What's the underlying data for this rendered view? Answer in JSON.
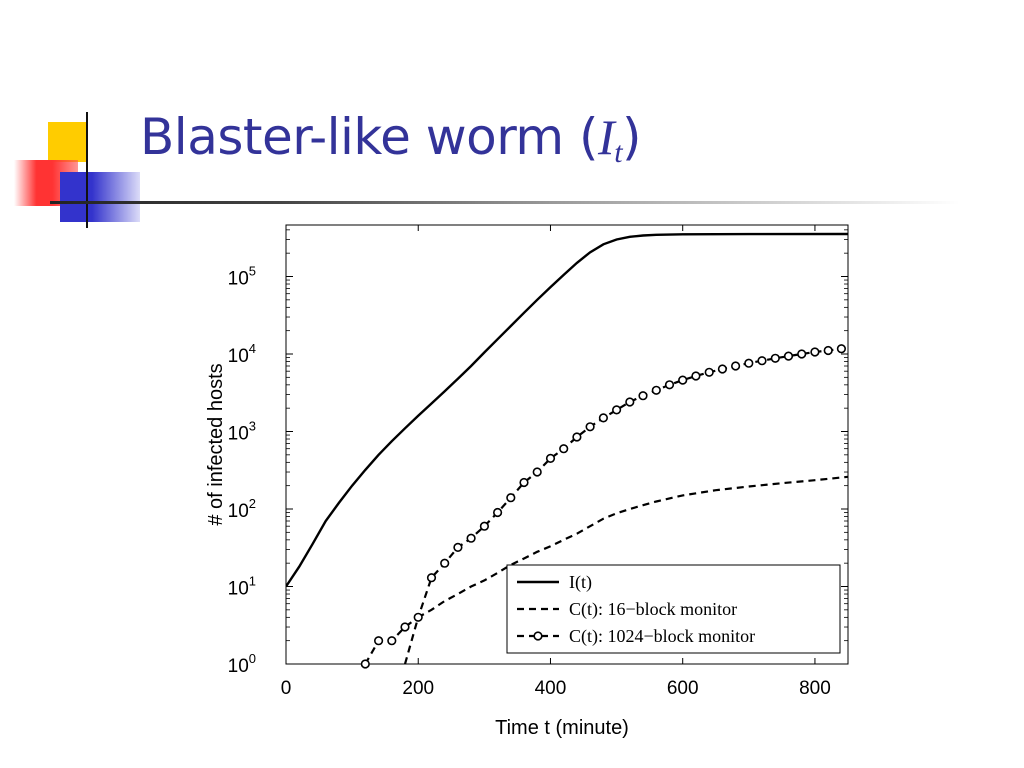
{
  "slide": {
    "title_text": "Blaster-like worm (",
    "title_var": "I",
    "title_sub": "t",
    "title_close": ")",
    "accent_colors": {
      "yellow": "#ffcc00",
      "red": "#ff3333",
      "blue": "#3333cc",
      "navy": "#333399"
    }
  },
  "chart_data": {
    "type": "line",
    "title": "",
    "xlabel": "Time t (minute)",
    "ylabel": "# of infected hosts",
    "xlim": [
      0,
      850
    ],
    "ylim": [
      1,
      400000
    ],
    "yscale": "log",
    "grid": false,
    "legend_position": "bottom-right",
    "x_ticks": [
      0,
      200,
      400,
      600,
      800
    ],
    "x_tick_labels": [
      "0",
      "200",
      "400",
      "600",
      "800"
    ],
    "y_ticks": [
      1,
      10,
      100,
      1000,
      10000,
      100000
    ],
    "y_tick_labels": [
      {
        "base": "10",
        "exp": "0"
      },
      {
        "base": "10",
        "exp": "1"
      },
      {
        "base": "10",
        "exp": "2"
      },
      {
        "base": "10",
        "exp": "3"
      },
      {
        "base": "10",
        "exp": "4"
      },
      {
        "base": "10",
        "exp": "5"
      }
    ],
    "series": [
      {
        "name": "I(t)",
        "style": "solid",
        "points": [
          [
            0,
            10
          ],
          [
            20,
            18
          ],
          [
            40,
            35
          ],
          [
            60,
            70
          ],
          [
            80,
            120
          ],
          [
            100,
            200
          ],
          [
            120,
            320
          ],
          [
            140,
            500
          ],
          [
            160,
            750
          ],
          [
            180,
            1100
          ],
          [
            200,
            1600
          ],
          [
            220,
            2300
          ],
          [
            240,
            3300
          ],
          [
            260,
            4800
          ],
          [
            280,
            7000
          ],
          [
            300,
            10500
          ],
          [
            320,
            15500
          ],
          [
            340,
            23000
          ],
          [
            360,
            34000
          ],
          [
            380,
            50000
          ],
          [
            400,
            73000
          ],
          [
            420,
            105000
          ],
          [
            440,
            150000
          ],
          [
            460,
            205000
          ],
          [
            480,
            260000
          ],
          [
            500,
            300000
          ],
          [
            520,
            325000
          ],
          [
            540,
            338000
          ],
          [
            560,
            345000
          ],
          [
            600,
            350000
          ],
          [
            700,
            352000
          ],
          [
            850,
            353000
          ]
        ]
      },
      {
        "name": "C(t): 16−block monitor",
        "style": "dashed",
        "points": [
          [
            180,
            1
          ],
          [
            200,
            4
          ],
          [
            220,
            5
          ],
          [
            240,
            6.5
          ],
          [
            260,
            8
          ],
          [
            280,
            10
          ],
          [
            300,
            12
          ],
          [
            320,
            15
          ],
          [
            340,
            19
          ],
          [
            360,
            23
          ],
          [
            380,
            28
          ],
          [
            400,
            33
          ],
          [
            420,
            40
          ],
          [
            440,
            48
          ],
          [
            460,
            60
          ],
          [
            480,
            75
          ],
          [
            500,
            88
          ],
          [
            520,
            100
          ],
          [
            540,
            112
          ],
          [
            560,
            125
          ],
          [
            600,
            150
          ],
          [
            650,
            175
          ],
          [
            700,
            195
          ],
          [
            750,
            215
          ],
          [
            800,
            235
          ],
          [
            850,
            260
          ]
        ]
      },
      {
        "name": "C(t): 1024−block monitor",
        "style": "dashed-circle",
        "points": [
          [
            120,
            1
          ],
          [
            140,
            2
          ],
          [
            160,
            2
          ],
          [
            180,
            3
          ],
          [
            200,
            4
          ],
          [
            220,
            13
          ],
          [
            240,
            20
          ],
          [
            260,
            32
          ],
          [
            280,
            42
          ],
          [
            300,
            60
          ],
          [
            320,
            90
          ],
          [
            340,
            140
          ],
          [
            360,
            220
          ],
          [
            380,
            300
          ],
          [
            400,
            450
          ],
          [
            420,
            600
          ],
          [
            440,
            850
          ],
          [
            460,
            1150
          ],
          [
            480,
            1500
          ],
          [
            500,
            1900
          ],
          [
            520,
            2400
          ],
          [
            540,
            2900
          ],
          [
            560,
            3400
          ],
          [
            580,
            4000
          ],
          [
            600,
            4600
          ],
          [
            620,
            5200
          ],
          [
            640,
            5800
          ],
          [
            660,
            6400
          ],
          [
            680,
            7000
          ],
          [
            700,
            7600
          ],
          [
            720,
            8200
          ],
          [
            740,
            8800
          ],
          [
            760,
            9400
          ],
          [
            780,
            10000
          ],
          [
            800,
            10600
          ],
          [
            820,
            11100
          ],
          [
            840,
            11700
          ]
        ]
      }
    ]
  }
}
